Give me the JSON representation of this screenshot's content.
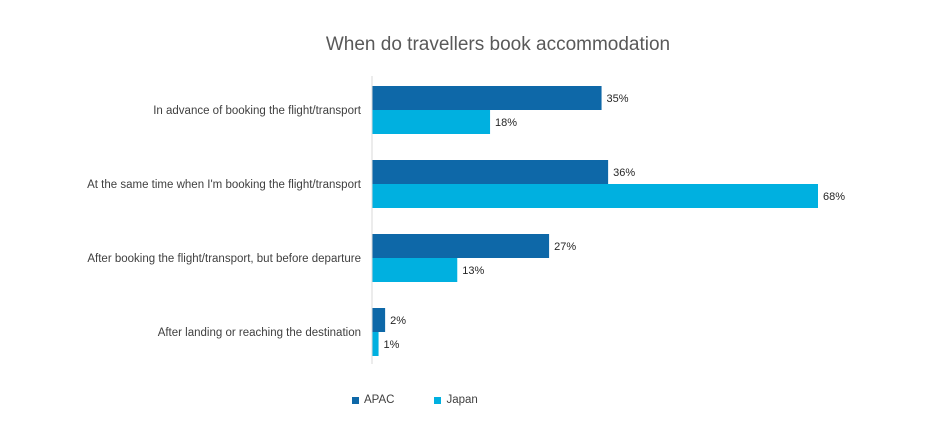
{
  "chart_data": {
    "type": "bar",
    "orientation": "horizontal",
    "title": "When do travellers book accommodation",
    "categories": [
      "In advance of booking the flight/transport",
      "At the same time when I'm booking the flight/transport",
      "After booking the flight/transport, but before departure",
      "After landing or reaching the destination"
    ],
    "series": [
      {
        "name": "APAC",
        "color": "#0E68A8",
        "values": [
          35,
          36,
          27,
          2
        ],
        "labels": [
          "35%",
          "36%",
          "27%",
          "2%"
        ]
      },
      {
        "name": "Japan",
        "color": "#00B0E0",
        "values": [
          18,
          68,
          13,
          1
        ],
        "labels": [
          "18%",
          "68%",
          "13%",
          "1%"
        ]
      }
    ],
    "xlim": [
      0,
      70
    ],
    "legend_position": "bottom",
    "grid": false
  }
}
